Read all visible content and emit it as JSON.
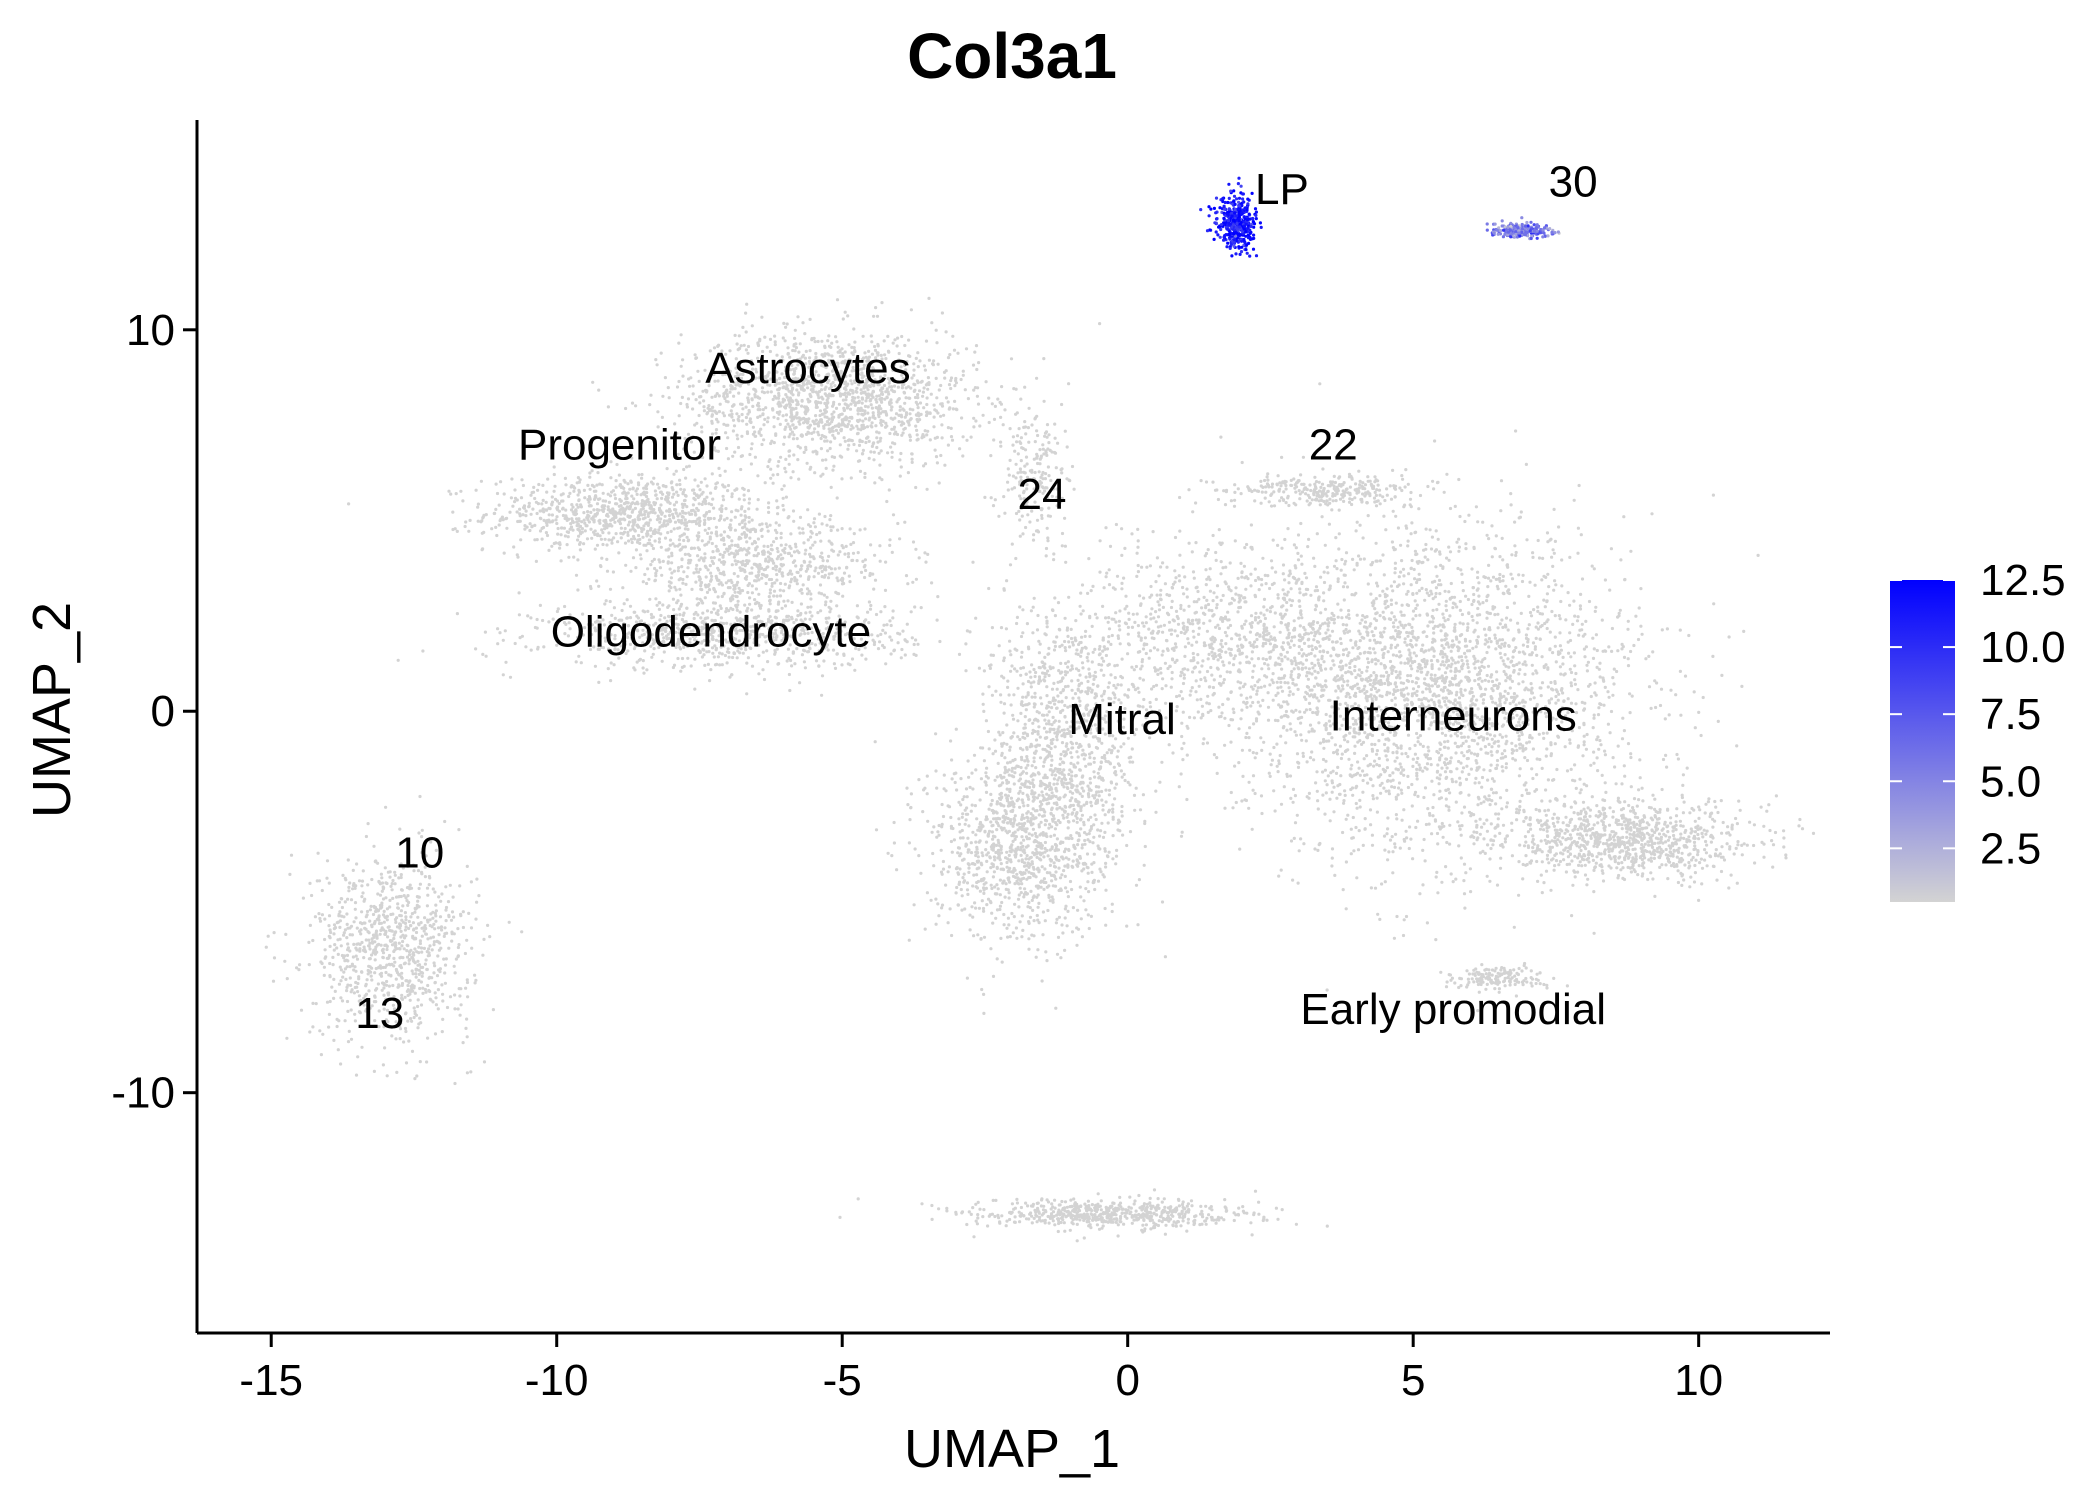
{
  "chart_data": {
    "type": "scatter",
    "title": "Col3a1",
    "xlabel": "UMAP_1",
    "ylabel": "UMAP_2",
    "xlim": [
      -16.3,
      12.3
    ],
    "ylim": [
      -16.3,
      15.5
    ],
    "x_ticks": [
      -15,
      -10,
      -5,
      0,
      5,
      10
    ],
    "y_ticks": [
      -10,
      0,
      10
    ],
    "x_tick_labels": [
      "-15",
      "-10",
      "-5",
      "0",
      "5",
      "10"
    ],
    "y_tick_labels": [
      "-10",
      "0",
      "10"
    ],
    "grid": false,
    "legend_position": "right",
    "color_scale": {
      "low_color": "#d3d3d3",
      "high_color": "#0000ff",
      "min": 0.5,
      "max": 12.5,
      "ticks": [
        12.5,
        10.0,
        7.5,
        5.0,
        2.5
      ],
      "tick_labels": [
        "12.5",
        "10.0",
        "7.5",
        "5.0",
        "2.5"
      ]
    },
    "cluster_labels": [
      {
        "text": "LP",
        "x": 2.7,
        "y": 13.3
      },
      {
        "text": "30",
        "x": 7.8,
        "y": 13.5
      },
      {
        "text": "Astrocytes",
        "x": -5.6,
        "y": 8.6
      },
      {
        "text": "Progenitor",
        "x": -8.9,
        "y": 6.6
      },
      {
        "text": "22",
        "x": 3.6,
        "y": 6.6
      },
      {
        "text": "24",
        "x": -1.5,
        "y": 5.3
      },
      {
        "text": "Oligodendrocyte",
        "x": -7.3,
        "y": 1.7
      },
      {
        "text": "Mitral",
        "x": -0.1,
        "y": -0.6
      },
      {
        "text": "Interneurons",
        "x": 5.7,
        "y": -0.5
      },
      {
        "text": "10",
        "x": -12.4,
        "y": -4.1
      },
      {
        "text": "13",
        "x": -13.1,
        "y": -8.3
      },
      {
        "text": "Early promodial",
        "x": 5.7,
        "y": -8.2
      }
    ],
    "clusters": [
      {
        "cx": -8.8,
        "cy": 5.2,
        "rx": 2.4,
        "ry": 1.0,
        "n": 900,
        "expr": 0.3
      },
      {
        "cx": -5.2,
        "cy": 8.2,
        "rx": 2.6,
        "ry": 1.8,
        "n": 1500,
        "expr": 0.3
      },
      {
        "cx": -6.5,
        "cy": 3.8,
        "rx": 2.5,
        "ry": 1.2,
        "n": 700,
        "expr": 0.3
      },
      {
        "cx": -7.0,
        "cy": 2.0,
        "rx": 3.2,
        "ry": 0.9,
        "n": 800,
        "expr": 0.3
      },
      {
        "cx": -12.9,
        "cy": -6.2,
        "rx": 1.4,
        "ry": 2.4,
        "n": 900,
        "expr": 0.3
      },
      {
        "cx": -2.0,
        "cy": -3.5,
        "rx": 1.5,
        "ry": 2.5,
        "n": 900,
        "expr": 0.3
      },
      {
        "cx": -1.1,
        "cy": -1.0,
        "rx": 1.3,
        "ry": 3.8,
        "n": 1000,
        "expr": 0.3
      },
      {
        "cx": 1.8,
        "cy": 2.0,
        "rx": 2.8,
        "ry": 2.5,
        "n": 900,
        "expr": 0.3
      },
      {
        "cx": 5.4,
        "cy": 0.5,
        "rx": 3.5,
        "ry": 4.2,
        "n": 2800,
        "expr": 0.3
      },
      {
        "cx": 8.7,
        "cy": -3.4,
        "rx": 2.2,
        "ry": 1.0,
        "n": 900,
        "expr": 0.3
      },
      {
        "cx": 3.5,
        "cy": 5.8,
        "rx": 1.7,
        "ry": 0.4,
        "n": 300,
        "expr": 0.3
      },
      {
        "cx": -1.6,
        "cy": 6.2,
        "rx": 0.6,
        "ry": 1.8,
        "n": 200,
        "expr": 0.3
      },
      {
        "cx": 6.5,
        "cy": -7.0,
        "rx": 0.8,
        "ry": 0.3,
        "n": 150,
        "expr": 0.3
      },
      {
        "cx": -0.4,
        "cy": -13.2,
        "rx": 2.5,
        "ry": 0.4,
        "n": 600,
        "expr": 0.3
      },
      {
        "cx": 1.9,
        "cy": 12.8,
        "rx": 0.35,
        "ry": 0.7,
        "n": 400,
        "expr": 11.5
      },
      {
        "cx": 6.9,
        "cy": 12.6,
        "rx": 0.5,
        "ry": 0.2,
        "n": 220,
        "expr": 5.5
      }
    ]
  }
}
